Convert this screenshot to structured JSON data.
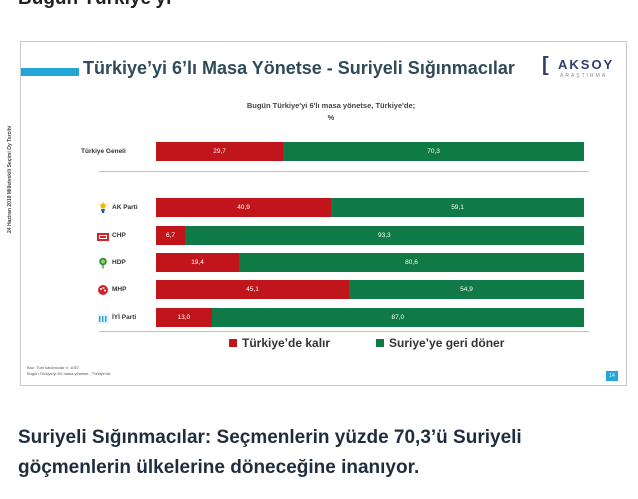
{
  "article": {
    "top_fragment": "Bugün Türkiye'yi",
    "caption": "Suriyeli Sığınmacılar: Seçmenlerin yüzde 70,3’ü Suriyeli göçmenlerin ülkelerine döneceğine inanıyor."
  },
  "slide": {
    "title": "Türkiye’yi 6’lı Masa Yönetse - Suriyeli Sığınmacılar",
    "subtitle_line1": "Bugün Türkiye'yi 6'lı masa yönetse, Türkiye'de;",
    "subtitle_line2": "%",
    "side_label": "24 Haziran 2018 Milletvekili Seçimi Oy Tercihi",
    "logo_main": "AKSOY",
    "logo_sub": "ARAŞTIRMA",
    "source_line1": "Baz: Tüm katılımcılar n: 1057",
    "source_line2": "Bugün Türkiye'yi 6'lı masa yönetse , Türkiye'de;",
    "page_number": "14",
    "colors": {
      "red": "#c0161b",
      "green": "#0f7a45",
      "accent": "#22a7d8"
    }
  },
  "chart_data": {
    "type": "bar",
    "orientation": "horizontal",
    "stacked": true,
    "categories": [
      "Türkiye Geneli",
      "AK Parti",
      "CHP",
      "HDP",
      "MHP",
      "İYİ Parti"
    ],
    "category_icons": [
      "",
      "ak-parti-logo-icon",
      "chp-logo-icon",
      "hdp-logo-icon",
      "mhp-logo-icon",
      "iyi-parti-logo-icon"
    ],
    "series": [
      {
        "name": "Türkiye’de kalır",
        "color": "#c0161b",
        "values": [
          29.7,
          40.9,
          6.7,
          19.4,
          45.1,
          13.0
        ],
        "labels": [
          "29,7",
          "40,9",
          "6,7",
          "19,4",
          "45,1",
          "13,0"
        ]
      },
      {
        "name": "Suriye’ye geri döner",
        "color": "#0f7a45",
        "values": [
          70.3,
          59.1,
          93.3,
          80.6,
          54.9,
          87.0
        ],
        "labels": [
          "70,3",
          "59,1",
          "93,3",
          "80,6",
          "54,9",
          "87,0"
        ]
      }
    ],
    "xlim": [
      0,
      100
    ],
    "title": "Türkiye’yi 6’lı Masa Yönetse - Suriyeli Sığınmacılar",
    "legend_position": "bottom",
    "grid": false
  }
}
